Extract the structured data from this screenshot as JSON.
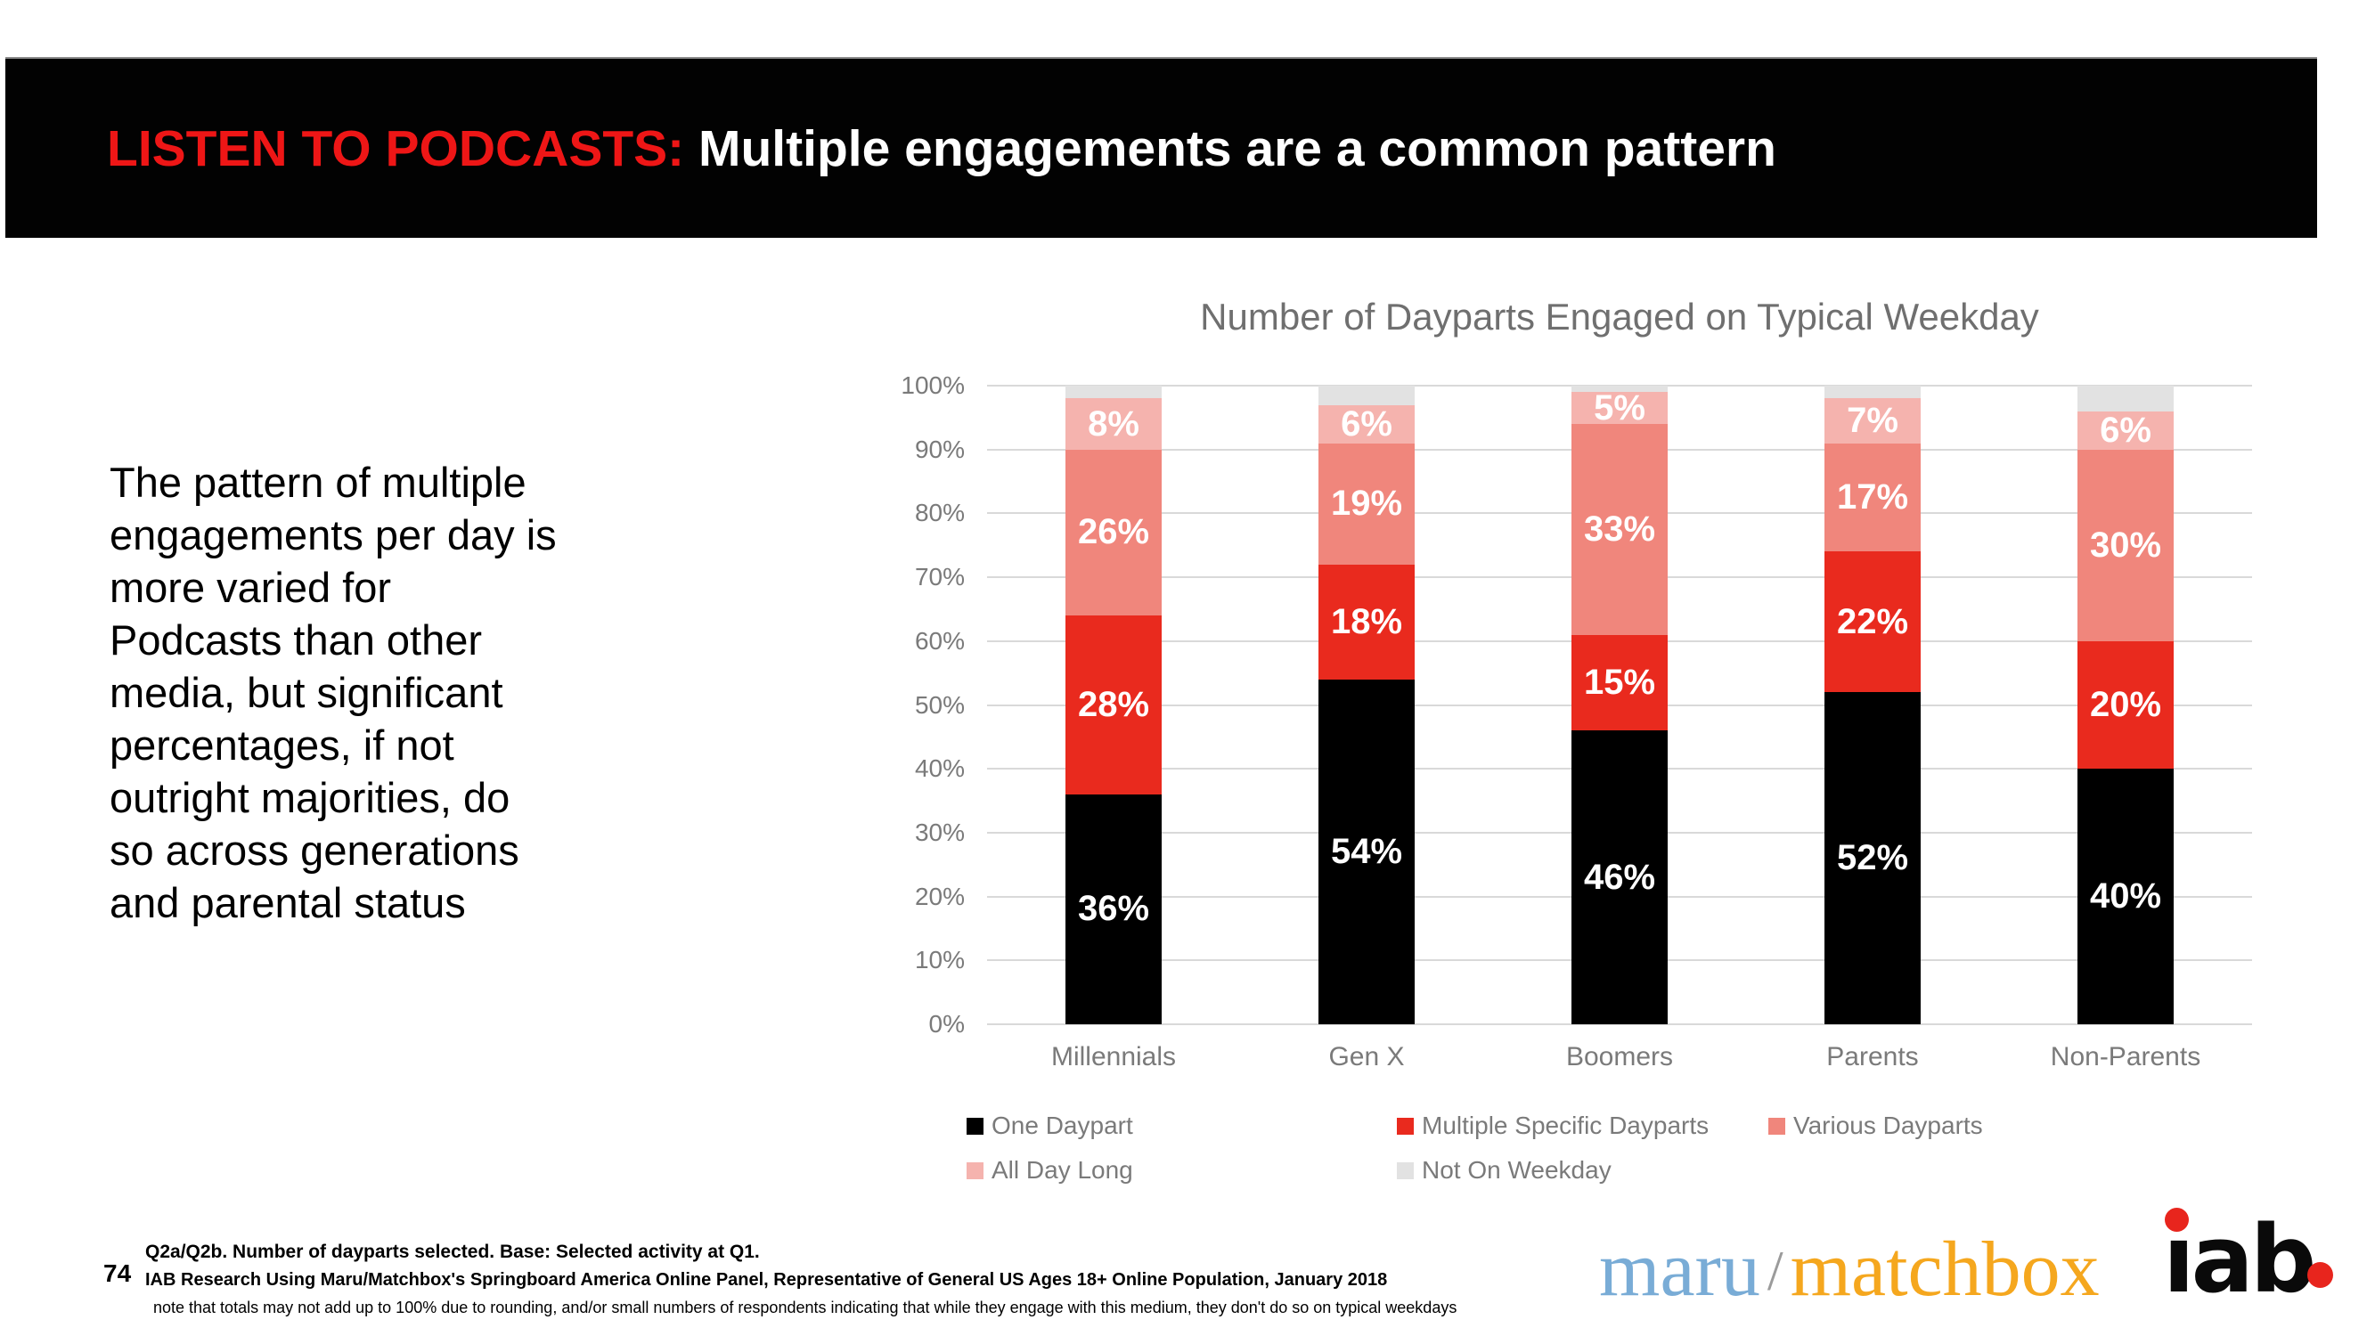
{
  "header": {
    "title_red": "LISTEN TO PODCASTS:",
    "title_white": " Multiple engagements are a common pattern",
    "accent_red": "#ee1616"
  },
  "intro": {
    "lines": [
      "The pattern of multiple",
      "engagements per day is",
      "more varied for",
      "Podcasts than other",
      "media, but significant",
      "percentages, if not",
      "outright majorities, do",
      "so across generations",
      "and parental status"
    ]
  },
  "chart_data": {
    "type": "bar",
    "subtype": "stacked-vertical",
    "title": "Number of Dayparts Engaged on Typical Weekday",
    "categories": [
      "Millennials",
      "Gen X",
      "Boomers",
      "Parents",
      "Non-Parents"
    ],
    "series": [
      {
        "name": "One Daypart",
        "color": "#000000",
        "values": [
          36,
          54,
          46,
          52,
          40
        ],
        "show_labels": true
      },
      {
        "name": "Multiple Specific Dayparts",
        "color": "#e92a1e",
        "values": [
          28,
          18,
          15,
          22,
          20
        ],
        "show_labels": true
      },
      {
        "name": "Various Dayparts",
        "color": "#f0867c",
        "values": [
          26,
          19,
          33,
          17,
          30
        ],
        "show_labels": true
      },
      {
        "name": "All Day Long",
        "color": "#f5b3ae",
        "values": [
          8,
          6,
          5,
          7,
          6
        ],
        "show_labels": true
      },
      {
        "name": "Not On Weekday",
        "color": "#e2e2e2",
        "values": [
          2,
          3,
          1,
          2,
          4
        ],
        "show_labels": false
      }
    ],
    "value_suffix": "%",
    "ylim": [
      0,
      100
    ],
    "y_ticks": [
      "100%",
      "90%",
      "80%",
      "70%",
      "60%",
      "50%",
      "40%",
      "30%",
      "20%",
      "10%",
      "0%"
    ],
    "grid": true,
    "legend_position": "bottom"
  },
  "footer": {
    "note1": "Q2a/Q2b. Number of dayparts selected. Base: Selected activity at Q1.",
    "page_number": "74",
    "note2": "IAB Research Using Maru/Matchbox's Springboard America Online Panel, Representative of General US Ages 18+ Online Population, January 2018",
    "note3": "note that totals may not add up to 100% due to rounding, and/or small numbers of respondents indicating that while they engage with this medium, they don't do so on typical weekdays"
  },
  "logos": {
    "maru": "maru",
    "slash": "/",
    "matchbox": "matchbox",
    "iab": "iab",
    "maru_blue": "#79acd6",
    "matchbox_yellow": "#f5a71e",
    "iab_red": "#e8251d"
  }
}
